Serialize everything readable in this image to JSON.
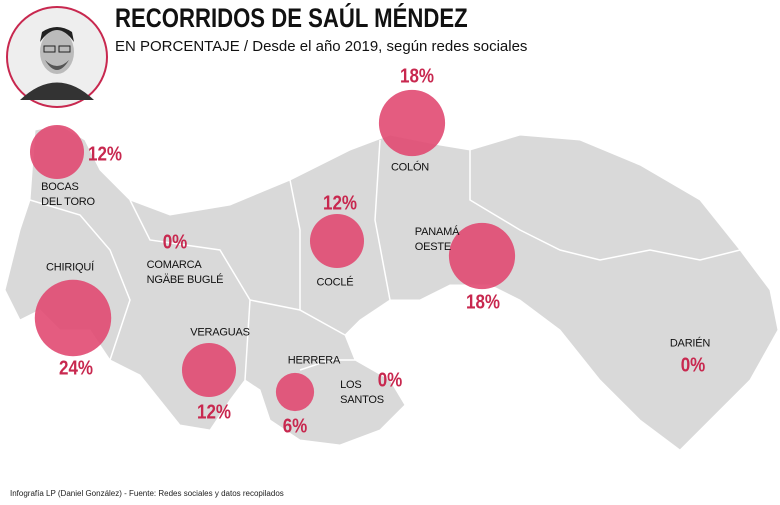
{
  "chart_data": {
    "type": "bubble_map",
    "title": "RECORRIDOS DE SAÚL MÉNDEZ",
    "subtitle": "EN PORCENTAJE / Desde el año 2019, según redes sociales",
    "source": "Infografía LP (Daniel González) - Fuente: Redes sociales y datos recopilados",
    "categories": [
      "BOCAS\nDEL TORO",
      "CHIRIQUÍ",
      "COMARCA\nNGÄBE BUGLÉ",
      "VERAGUAS",
      "COCLÉ",
      "HERRERA",
      "LOS\nSANTOS",
      "COLÓN",
      "PANAMÁ\nOESTE",
      "DARIÉN"
    ],
    "values": [
      12,
      24,
      0,
      12,
      12,
      6,
      0,
      18,
      18,
      0
    ],
    "value_labels": [
      "12%",
      "24%",
      "0%",
      "12%",
      "12%",
      "6%",
      "0%",
      "18%",
      "18%",
      "0%"
    ],
    "color": "#e0456e"
  }
}
